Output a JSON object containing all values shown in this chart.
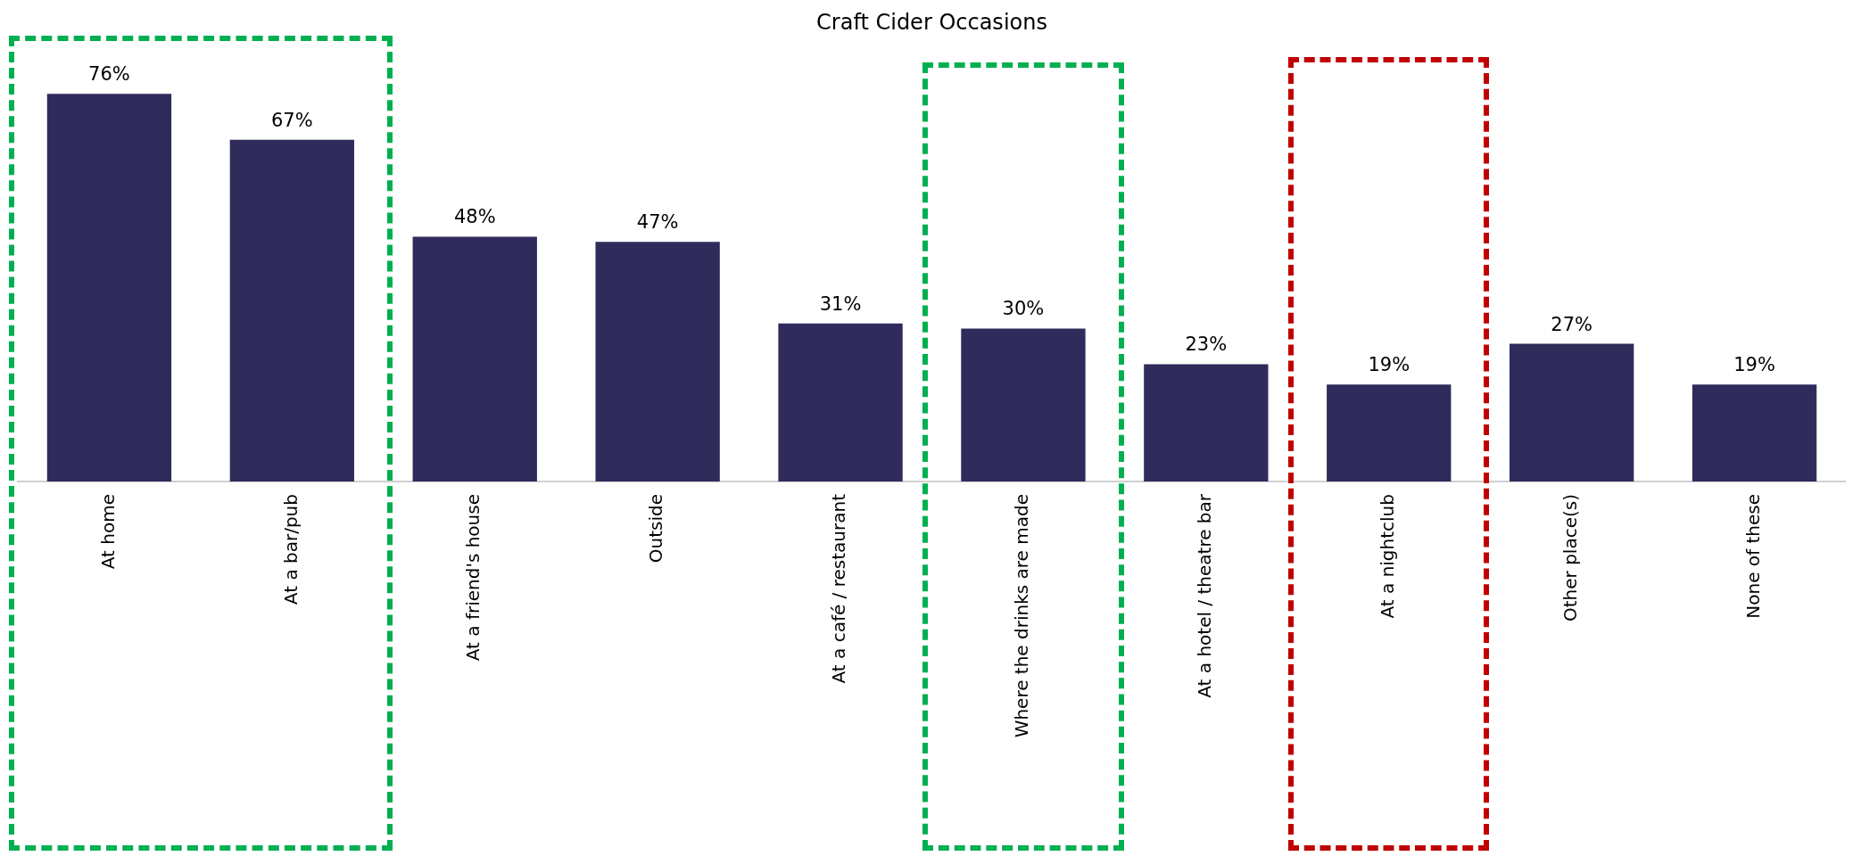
{
  "chart_data": {
    "type": "bar",
    "title": "Craft Cider Occasions",
    "categories": [
      "At home",
      "At a bar/pub",
      "At a friend's house",
      "Outside",
      "At a café / restaurant",
      "Where the drinks are made",
      "At a hotel / theatre bar",
      "At a nightclub",
      "Other place(s)",
      "None of these"
    ],
    "values": [
      76,
      67,
      48,
      47,
      31,
      30,
      23,
      19,
      27,
      19
    ],
    "value_labels": [
      "76%",
      "67%",
      "48%",
      "47%",
      "31%",
      "30%",
      "23%",
      "19%",
      "27%",
      "19%"
    ],
    "color": "#2f2c5c",
    "grid": false,
    "legend": false,
    "tick_labels": "x"
  }
}
